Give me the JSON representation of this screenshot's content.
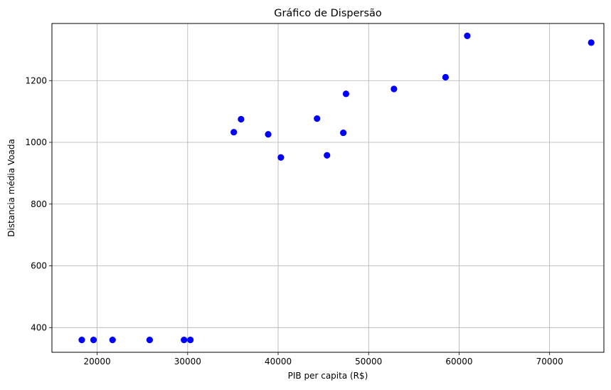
{
  "chart_data": {
    "type": "scatter",
    "title": "Gráfico de Dispersão",
    "xlabel": "PIB per capita (R$)",
    "ylabel": "Distancia média Voada",
    "xlim": [
      15000,
      76000
    ],
    "ylim": [
      320,
      1385
    ],
    "x_ticks": [
      20000,
      30000,
      40000,
      50000,
      60000,
      70000
    ],
    "y_ticks": [
      400,
      600,
      800,
      1000,
      1200
    ],
    "grid": true,
    "point_color": "#0000ff",
    "points": [
      {
        "x": 18300,
        "y": 360
      },
      {
        "x": 19600,
        "y": 360
      },
      {
        "x": 21700,
        "y": 360
      },
      {
        "x": 25800,
        "y": 360
      },
      {
        "x": 29600,
        "y": 360
      },
      {
        "x": 30300,
        "y": 360
      },
      {
        "x": 35100,
        "y": 1033
      },
      {
        "x": 35900,
        "y": 1075
      },
      {
        "x": 38900,
        "y": 1026
      },
      {
        "x": 40300,
        "y": 951
      },
      {
        "x": 44300,
        "y": 1077
      },
      {
        "x": 45400,
        "y": 958
      },
      {
        "x": 47200,
        "y": 1031
      },
      {
        "x": 47500,
        "y": 1157
      },
      {
        "x": 52800,
        "y": 1173
      },
      {
        "x": 58500,
        "y": 1211
      },
      {
        "x": 60900,
        "y": 1345
      },
      {
        "x": 74600,
        "y": 1323
      }
    ]
  }
}
